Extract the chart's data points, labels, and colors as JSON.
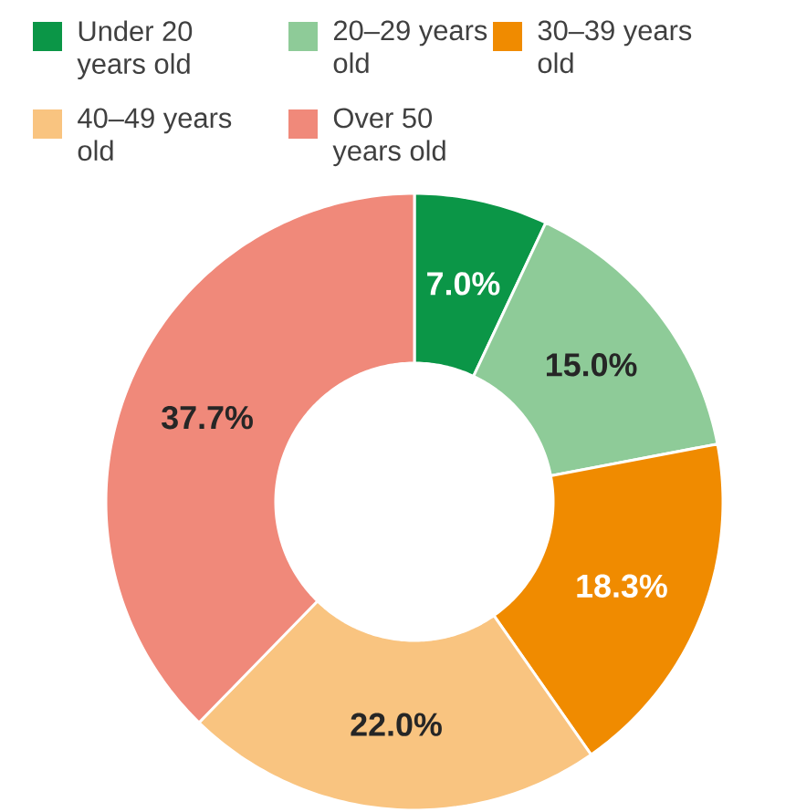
{
  "chart_data": {
    "type": "donut",
    "categories": [
      "Under 20 years old",
      "20–29 years old",
      "30–39 years old",
      "40–49 years old",
      "Over 50 years old"
    ],
    "values": [
      7.0,
      15.0,
      18.3,
      22.0,
      37.7
    ],
    "colors": [
      "#0b9647",
      "#8ecb98",
      "#f08b00",
      "#f9c480",
      "#f0897a"
    ],
    "value_labels": [
      "7.0%",
      "15.0%",
      "18.3%",
      "22.0%",
      "37.7%"
    ],
    "legend": "top"
  }
}
